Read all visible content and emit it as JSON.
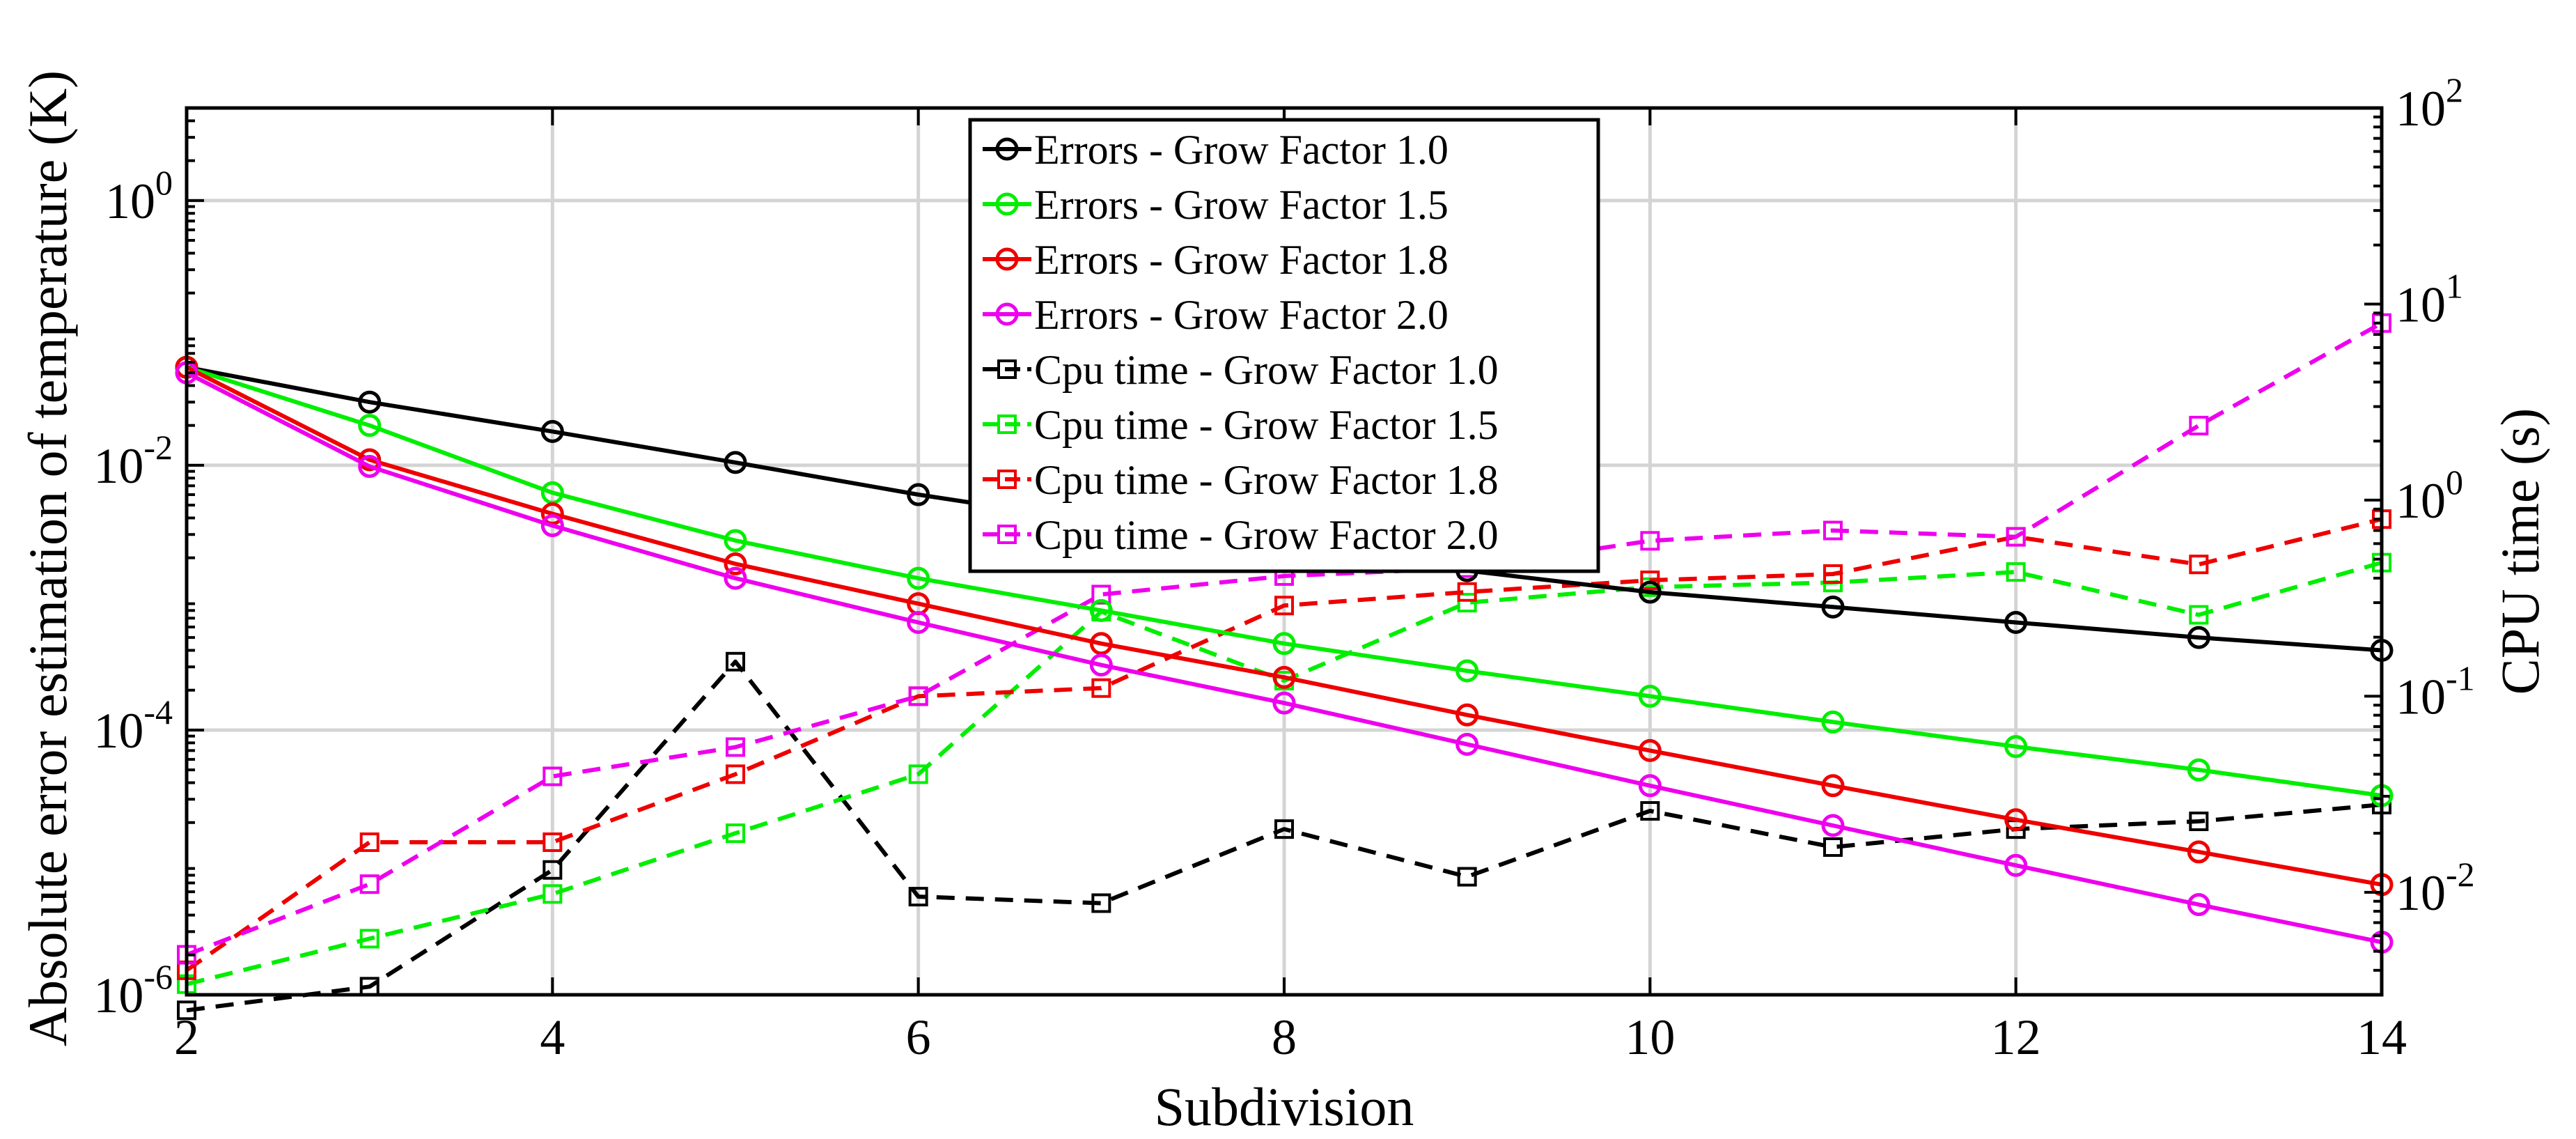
{
  "chart_data": {
    "type": "line",
    "title": "",
    "xlabel": "Subdivision",
    "ylabel_left": "Absolute error estimation of temperature (K)",
    "ylabel_right": "CPU time (s)",
    "x": [
      2,
      3,
      4,
      5,
      6,
      7,
      8,
      9,
      10,
      11,
      12,
      13,
      14
    ],
    "xlim": [
      2,
      14
    ],
    "x_ticks": [
      "2",
      "4",
      "6",
      "8",
      "10",
      "12",
      "14"
    ],
    "ylim_left": [
      1e-06,
      5
    ],
    "ylim_right": [
      0.003,
      100
    ],
    "y_scale": "log",
    "grid": true,
    "legend_position": "top-center",
    "left_ticks": [
      {
        "value": 1e-06,
        "base": "10",
        "exp": "-6"
      },
      {
        "value": 0.0001,
        "base": "10",
        "exp": "-4"
      },
      {
        "value": 0.01,
        "base": "10",
        "exp": "-2"
      },
      {
        "value": 1,
        "base": "10",
        "exp": "0"
      }
    ],
    "right_ticks": [
      {
        "value": 0.01,
        "base": "10",
        "exp": "-2"
      },
      {
        "value": 0.1,
        "base": "10",
        "exp": "-1"
      },
      {
        "value": 1,
        "base": "10",
        "exp": "0"
      },
      {
        "value": 10,
        "base": "10",
        "exp": "1"
      },
      {
        "value": 100,
        "base": "10",
        "exp": "2"
      }
    ],
    "series": [
      {
        "name": "Errors - Grow Factor 1.0",
        "axis": "left",
        "marker": "circle",
        "dash": false,
        "color": "#000000",
        "values": [
          0.055,
          0.03,
          0.018,
          0.0105,
          0.006,
          0.0037,
          0.0024,
          0.0016,
          0.0011,
          0.00085,
          0.00065,
          0.0005,
          0.0004
        ]
      },
      {
        "name": "Errors - Grow Factor 1.5",
        "axis": "left",
        "marker": "circle",
        "dash": false,
        "color": "#00ee00",
        "values": [
          0.055,
          0.02,
          0.0062,
          0.0027,
          0.0014,
          0.0008,
          0.00045,
          0.00028,
          0.00018,
          0.000115,
          7.5e-05,
          5e-05,
          3.2e-05
        ]
      },
      {
        "name": "Errors - Grow Factor 1.8",
        "axis": "left",
        "marker": "circle",
        "dash": false,
        "color": "#ee0000",
        "values": [
          0.055,
          0.011,
          0.0043,
          0.0018,
          0.0009,
          0.00045,
          0.00025,
          0.00013,
          7e-05,
          3.8e-05,
          2.1e-05,
          1.2e-05,
          6.8e-06
        ]
      },
      {
        "name": "Errors - Grow Factor 2.0",
        "axis": "left",
        "marker": "circle",
        "dash": false,
        "color": "#ee00ee",
        "values": [
          0.05,
          0.0098,
          0.0035,
          0.0014,
          0.00065,
          0.00031,
          0.00016,
          7.8e-05,
          3.8e-05,
          1.9e-05,
          9.5e-06,
          4.8e-06,
          2.5e-06
        ]
      },
      {
        "name": "Cpu time - Grow Factor 1.0",
        "axis": "right",
        "marker": "square",
        "dash": true,
        "color": "#000000",
        "values": [
          0.0025,
          0.0033,
          0.013,
          0.15,
          0.0095,
          0.0088,
          0.021,
          0.012,
          0.026,
          0.017,
          0.021,
          0.023,
          0.028
        ]
      },
      {
        "name": "Cpu time - Grow Factor 1.5",
        "axis": "right",
        "marker": "square",
        "dash": true,
        "color": "#00ee00",
        "values": [
          0.0034,
          0.0058,
          0.0098,
          0.02,
          0.04,
          0.27,
          0.12,
          0.3,
          0.36,
          0.38,
          0.43,
          0.26,
          0.48
        ]
      },
      {
        "name": "Cpu time - Grow Factor 1.8",
        "axis": "right",
        "marker": "square",
        "dash": true,
        "color": "#ee0000",
        "values": [
          0.004,
          0.018,
          0.018,
          0.04,
          0.1,
          0.11,
          0.29,
          0.34,
          0.39,
          0.42,
          0.65,
          0.47,
          0.8
        ]
      },
      {
        "name": "Cpu time - Grow Factor 2.0",
        "axis": "right",
        "marker": "square",
        "dash": true,
        "color": "#ee00ee",
        "values": [
          0.0048,
          0.011,
          0.039,
          0.055,
          0.1,
          0.33,
          0.41,
          0.45,
          0.62,
          0.7,
          0.65,
          2.4,
          8.0
        ]
      }
    ]
  }
}
